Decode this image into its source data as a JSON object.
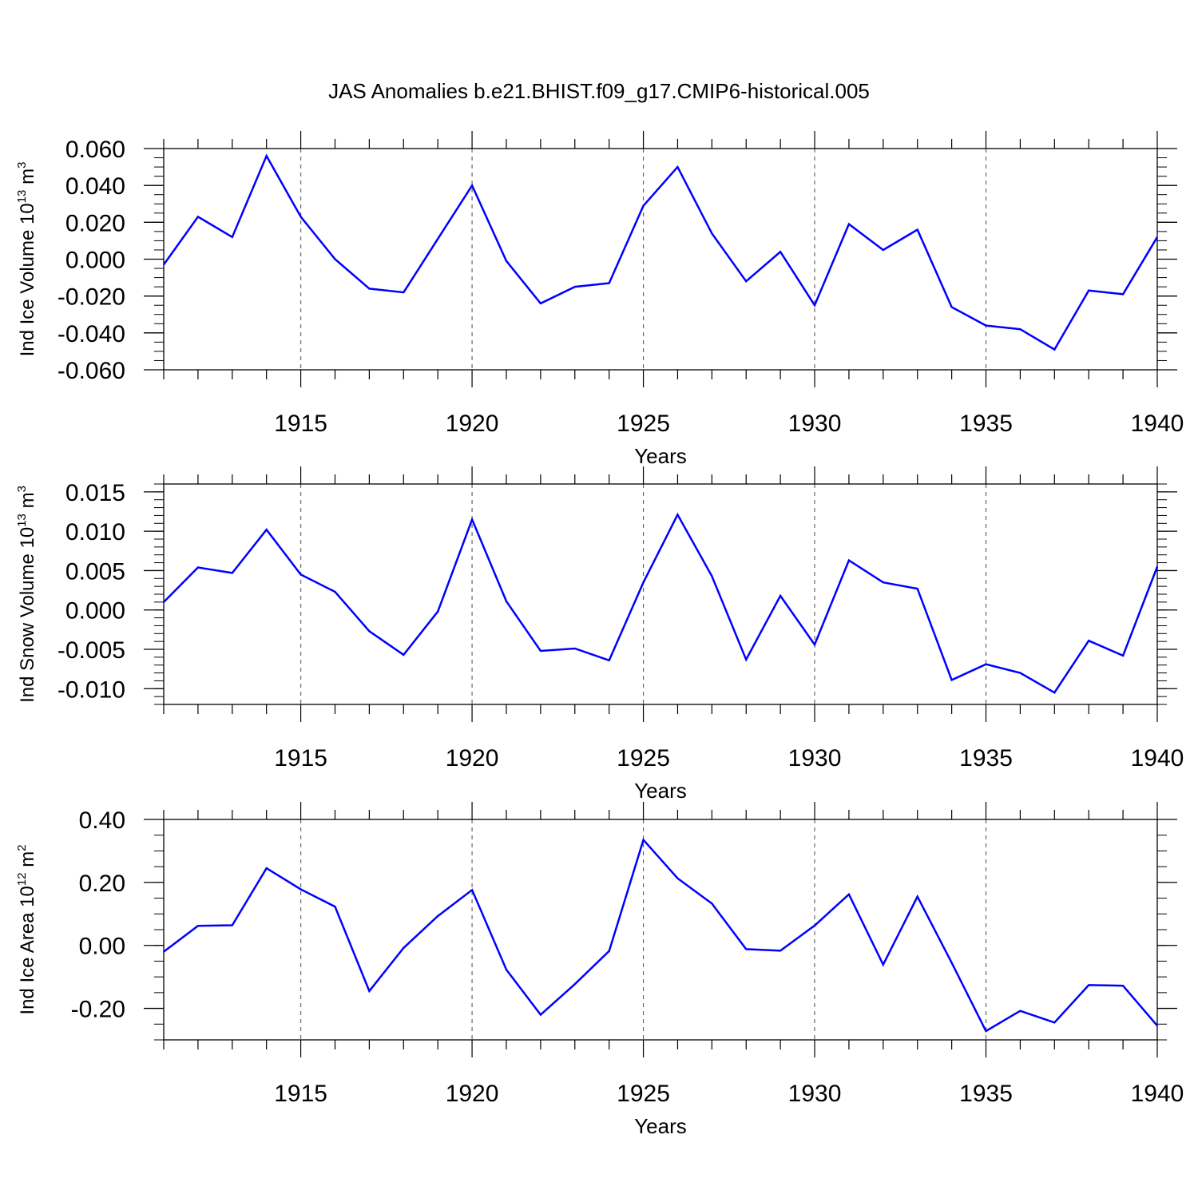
{
  "chart_data": {
    "type": "line",
    "title": "JAS Anomalies b.e21.BHIST.f09_g17.CMIP6-historical.005",
    "line_color": "#0000ff",
    "grid": "vertical dashed at major x ticks",
    "x": [
      1911,
      1912,
      1913,
      1914,
      1915,
      1916,
      1917,
      1918,
      1919,
      1920,
      1921,
      1922,
      1923,
      1924,
      1925,
      1926,
      1927,
      1928,
      1929,
      1930,
      1931,
      1932,
      1933,
      1934,
      1935,
      1936,
      1937,
      1938,
      1939,
      1940
    ],
    "xlim": [
      1911,
      1940
    ],
    "xticks": [
      1915,
      1920,
      1925,
      1930,
      1935,
      1940
    ],
    "xtick_labels": [
      "1915",
      "1920",
      "1925",
      "1930",
      "1935",
      "1940"
    ],
    "panels": [
      {
        "ylabel_main": "Ind Ice Volume 10",
        "ylabel_exp": "13",
        "ylabel_unit": " m",
        "ylabel_unit_exp": "3",
        "xlabel": "Years",
        "ylim": [
          -0.06,
          0.06
        ],
        "yticks": [
          0.06,
          0.04,
          0.02,
          0.0,
          -0.02,
          -0.04,
          -0.06
        ],
        "ytick_labels": [
          "0.060",
          "0.040",
          "0.020",
          "0.000",
          "-0.020",
          "-0.040",
          "-0.060"
        ],
        "minor_step": 0.005,
        "values": [
          -0.003,
          0.023,
          0.012,
          0.056,
          0.023,
          0.0,
          -0.016,
          -0.018,
          0.011,
          0.04,
          -0.001,
          -0.024,
          -0.015,
          -0.013,
          0.029,
          0.05,
          0.014,
          -0.012,
          0.004,
          -0.025,
          0.019,
          0.005,
          0.016,
          -0.026,
          -0.036,
          -0.038,
          -0.049,
          -0.017,
          -0.019,
          0.012
        ]
      },
      {
        "ylabel_main": "Ind Snow Volume 10",
        "ylabel_exp": "13",
        "ylabel_unit": " m",
        "ylabel_unit_exp": "3",
        "xlabel": "Years",
        "ylim": [
          -0.012,
          0.016
        ],
        "yticks": [
          0.015,
          0.01,
          0.005,
          0.0,
          -0.005,
          -0.01
        ],
        "ytick_labels": [
          "0.015",
          "0.010",
          "0.005",
          "0.000",
          "-0.005",
          "-0.010"
        ],
        "minor_step": 0.001,
        "values": [
          0.001,
          0.0054,
          0.0047,
          0.0102,
          0.0045,
          0.0023,
          -0.0027,
          -0.0057,
          -0.0002,
          0.0115,
          0.0011,
          -0.0052,
          -0.0049,
          -0.0064,
          0.0035,
          0.0121,
          0.0043,
          -0.0063,
          0.0018,
          -0.0044,
          0.0063,
          0.0035,
          0.0027,
          -0.0089,
          -0.0069,
          -0.008,
          -0.0105,
          -0.0039,
          -0.0058,
          0.0055
        ]
      },
      {
        "ylabel_main": "Ind Ice Area 10",
        "ylabel_exp": "12",
        "ylabel_unit": " m",
        "ylabel_unit_exp": "2",
        "xlabel": "Years",
        "ylim": [
          -0.3,
          0.4
        ],
        "yticks": [
          0.4,
          0.2,
          0.0,
          -0.2
        ],
        "ytick_labels": [
          "0.40",
          "0.20",
          "0.00",
          "-0.20"
        ],
        "minor_step": 0.05,
        "values": [
          -0.02,
          0.062,
          0.064,
          0.245,
          0.178,
          0.123,
          -0.145,
          -0.008,
          0.093,
          0.176,
          -0.077,
          -0.22,
          -0.123,
          -0.018,
          0.335,
          0.213,
          0.133,
          -0.012,
          -0.017,
          0.063,
          0.162,
          -0.061,
          0.155,
          -0.055,
          -0.272,
          -0.208,
          -0.245,
          -0.126,
          -0.128,
          -0.255
        ]
      }
    ]
  }
}
